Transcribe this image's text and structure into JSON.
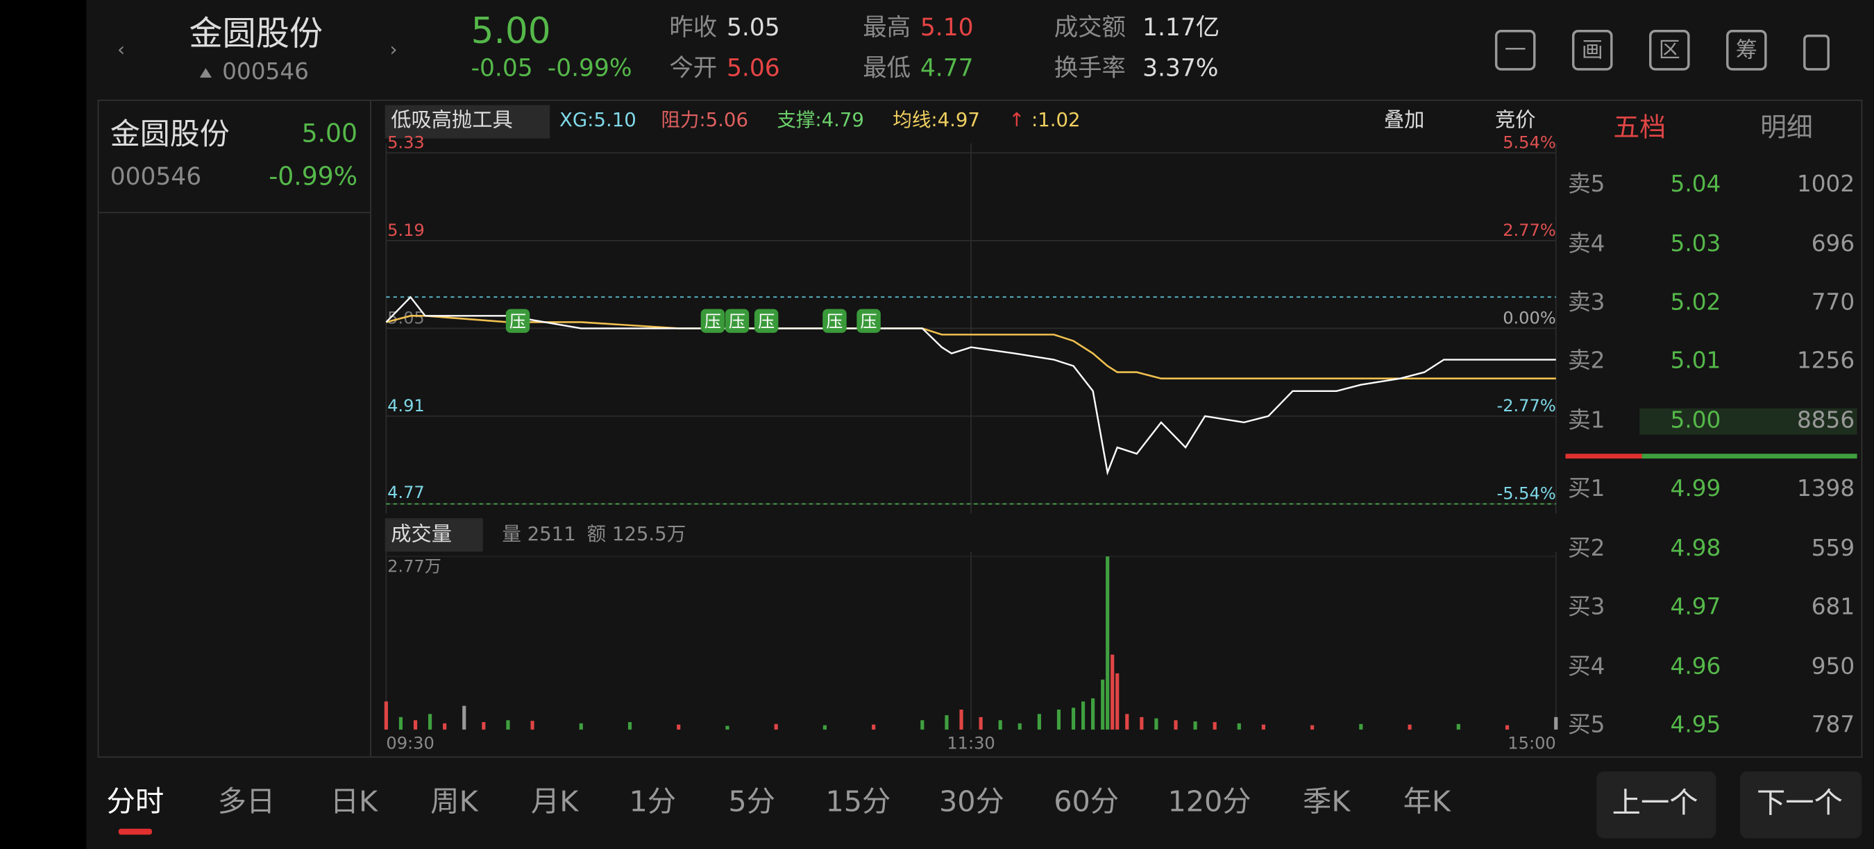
{
  "header": {
    "name": "金圆股份",
    "code": "000546",
    "price": "5.00",
    "change": "-0.05",
    "change_pct": "-0.99%",
    "stats": [
      {
        "label": "昨收",
        "value": "5.05"
      },
      {
        "label": "今开",
        "value": "5.06"
      },
      {
        "label": "最高",
        "value": "5.10"
      },
      {
        "label": "最低",
        "value": "4.77"
      },
      {
        "label": "成交额",
        "value": "1.17亿"
      },
      {
        "label": "换手率",
        "value": "3.37%"
      }
    ],
    "tools": [
      "一",
      "画",
      "区",
      "筹"
    ]
  },
  "watchlist": [
    {
      "name": "金圆股份",
      "price": "5.00",
      "code": "000546",
      "change_pct": "-0.99%"
    }
  ],
  "toolbar": {
    "tool": "低吸高抛工具",
    "items": [
      {
        "text": "XG:5.10",
        "color": "#7fd8e8"
      },
      {
        "text": "阻力:5.06",
        "color": "#e06060"
      },
      {
        "text": "支撑:4.79",
        "color": "#6cd06c"
      },
      {
        "text": "均线:4.97",
        "color": "#f0d060"
      },
      {
        "text": "↑",
        "color": "#e04040"
      },
      {
        "text": ":1.02",
        "color": "#f0d060"
      }
    ],
    "overlay": "叠加",
    "auction": "竞价"
  },
  "chart_data": [
    {
      "type": "line",
      "xlim": [
        0,
        240
      ],
      "xticks": [
        {
          "value": 0,
          "label": "09:30"
        },
        {
          "value": 120,
          "label": "11:30"
        },
        {
          "value": 240,
          "label": "15:00"
        }
      ],
      "ylim": [
        4.77,
        5.33
      ],
      "yticks": [
        5.33,
        5.19,
        5.05,
        4.91,
        4.77
      ],
      "y2lim": [
        -5.54,
        5.54
      ],
      "y2ticks": [
        {
          "value": 5.54,
          "label": "5.54%"
        },
        {
          "value": 2.77,
          "label": "2.77%"
        },
        {
          "value": 0,
          "label": "0.00%"
        },
        {
          "value": -2.77,
          "label": "-2.77%"
        },
        {
          "value": -5.54,
          "label": "-5.54%"
        }
      ],
      "x": [
        0,
        5,
        8,
        25,
        40,
        60,
        80,
        100,
        110,
        114,
        116,
        120,
        129,
        137,
        141,
        145,
        148,
        150,
        154,
        159,
        164,
        168,
        176,
        181,
        186,
        195,
        200,
        208,
        213,
        217,
        240
      ],
      "series": [
        {
          "color": "#ffffff",
          "values": [
            5.06,
            5.1,
            5.07,
            5.07,
            5.05,
            5.05,
            5.05,
            5.05,
            5.05,
            5.02,
            5.01,
            5.02,
            5.01,
            5.0,
            4.99,
            4.95,
            4.82,
            4.86,
            4.85,
            4.9,
            4.86,
            4.91,
            4.9,
            4.91,
            4.95,
            4.95,
            4.96,
            4.97,
            4.98,
            5.0,
            5.0
          ]
        },
        {
          "color": "#f0c050",
          "values": [
            5.06,
            5.07,
            5.07,
            5.06,
            5.06,
            5.05,
            5.05,
            5.05,
            5.05,
            5.04,
            5.04,
            5.04,
            5.04,
            5.04,
            5.03,
            5.01,
            4.99,
            4.98,
            4.98,
            4.97,
            4.97,
            4.97,
            4.97,
            4.97,
            4.97,
            4.97,
            4.97,
            4.97,
            4.97,
            4.97,
            4.97
          ]
        }
      ],
      "hlines": [
        {
          "value": 5.1,
          "color": "#5fc8d8"
        },
        {
          "value": 4.77,
          "color": "#4caf50"
        }
      ],
      "markers": {
        "label": "压",
        "x": [
          27,
          67,
          72,
          78,
          92,
          99
        ],
        "values": [
          5.06,
          5.06,
          5.06,
          5.06,
          5.06,
          5.06
        ]
      }
    },
    {
      "type": "bar",
      "title": "成交量",
      "stats": [
        "量 2511",
        "额 125.5万"
      ],
      "xlim": [
        0,
        240
      ],
      "ylim": [
        0,
        27700
      ],
      "yticks": [
        {
          "value": 27700,
          "label": "2.77万"
        }
      ],
      "x": [
        0,
        3,
        6,
        9,
        12,
        16,
        20,
        25,
        30,
        40,
        50,
        60,
        70,
        80,
        90,
        100,
        110,
        115,
        118,
        122,
        126,
        130,
        134,
        138,
        141,
        143,
        145,
        147,
        148,
        149,
        150,
        152,
        155,
        158,
        162,
        166,
        170,
        175,
        180,
        190,
        200,
        210,
        220,
        230,
        240
      ],
      "values": [
        4500,
        2000,
        1500,
        2500,
        1000,
        3800,
        1200,
        1500,
        1400,
        1000,
        1200,
        800,
        600,
        900,
        700,
        800,
        1500,
        2300,
        3200,
        2000,
        1500,
        1000,
        2500,
        3200,
        3500,
        4500,
        5000,
        8000,
        27700,
        12000,
        9000,
        2500,
        2000,
        1800,
        1500,
        1300,
        1200,
        1000,
        800,
        700,
        900,
        800,
        900,
        700,
        2000
      ],
      "colors": [
        "#e04545",
        "#3fa03f",
        "#e04545",
        "#3fa03f",
        "#e04545",
        "#999999",
        "#e04545",
        "#3fa03f",
        "#e04545",
        "#3fa03f",
        "#3fa03f",
        "#e04545",
        "#3fa03f",
        "#e04545",
        "#3fa03f",
        "#e04545",
        "#3fa03f",
        "#3fa03f",
        "#e04545",
        "#e04545",
        "#3fa03f",
        "#3fa03f",
        "#3fa03f",
        "#3fa03f",
        "#3fa03f",
        "#3fa03f",
        "#3fa03f",
        "#3fa03f",
        "#3fa03f",
        "#e04545",
        "#e04545",
        "#e04545",
        "#e04545",
        "#3fa03f",
        "#e04545",
        "#3fa03f",
        "#e04545",
        "#3fa03f",
        "#e04545",
        "#e04545",
        "#3fa03f",
        "#e04545",
        "#3fa03f",
        "#e04545",
        "#999999"
      ]
    }
  ],
  "order_book": {
    "tabs": [
      "五档",
      "明细"
    ],
    "rows": [
      {
        "label": "卖5",
        "price": "5.04",
        "volume": "1002"
      },
      {
        "label": "卖4",
        "price": "5.03",
        "volume": "696"
      },
      {
        "label": "卖3",
        "price": "5.02",
        "volume": "770"
      },
      {
        "label": "卖2",
        "price": "5.01",
        "volume": "1256"
      },
      {
        "label": "卖1",
        "price": "5.00",
        "volume": "8856"
      },
      {
        "label": "买1",
        "price": "4.99",
        "volume": "1398"
      },
      {
        "label": "买2",
        "price": "4.98",
        "volume": "559"
      },
      {
        "label": "买3",
        "price": "4.97",
        "volume": "681"
      },
      {
        "label": "买4",
        "price": "4.96",
        "volume": "950"
      },
      {
        "label": "买5",
        "price": "4.95",
        "volume": "787"
      }
    ]
  },
  "period_tabs": [
    "分时",
    "多日",
    "日K",
    "周K",
    "月K",
    "1分",
    "5分",
    "15分",
    "30分",
    "60分",
    "120分",
    "季K",
    "年K"
  ],
  "nav_buttons": [
    "上一个",
    "下一个"
  ]
}
